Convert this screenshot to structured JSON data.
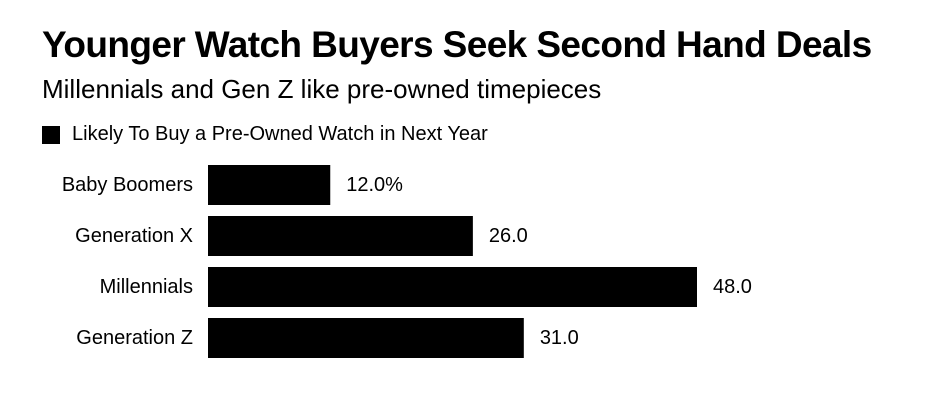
{
  "chart_data": {
    "type": "bar",
    "orientation": "horizontal",
    "title": "Younger Watch Buyers Seek Second Hand Deals",
    "subtitle": "Millennials and Gen Z like pre-owned timepieces",
    "categories": [
      "Baby Boomers",
      "Generation X",
      "Millennials",
      "Generation Z"
    ],
    "series": [
      {
        "name": "Likely To Buy a Pre-Owned Watch in Next Year",
        "values": [
          12.0,
          26.0,
          48.0,
          31.0
        ],
        "value_labels": [
          "12.0%",
          "26.0",
          "48.0",
          "31.0"
        ],
        "color": "#000000"
      }
    ],
    "xlim": [
      0,
      48
    ],
    "grid": false,
    "legend": "top-left",
    "xlabel": "",
    "ylabel": ""
  }
}
